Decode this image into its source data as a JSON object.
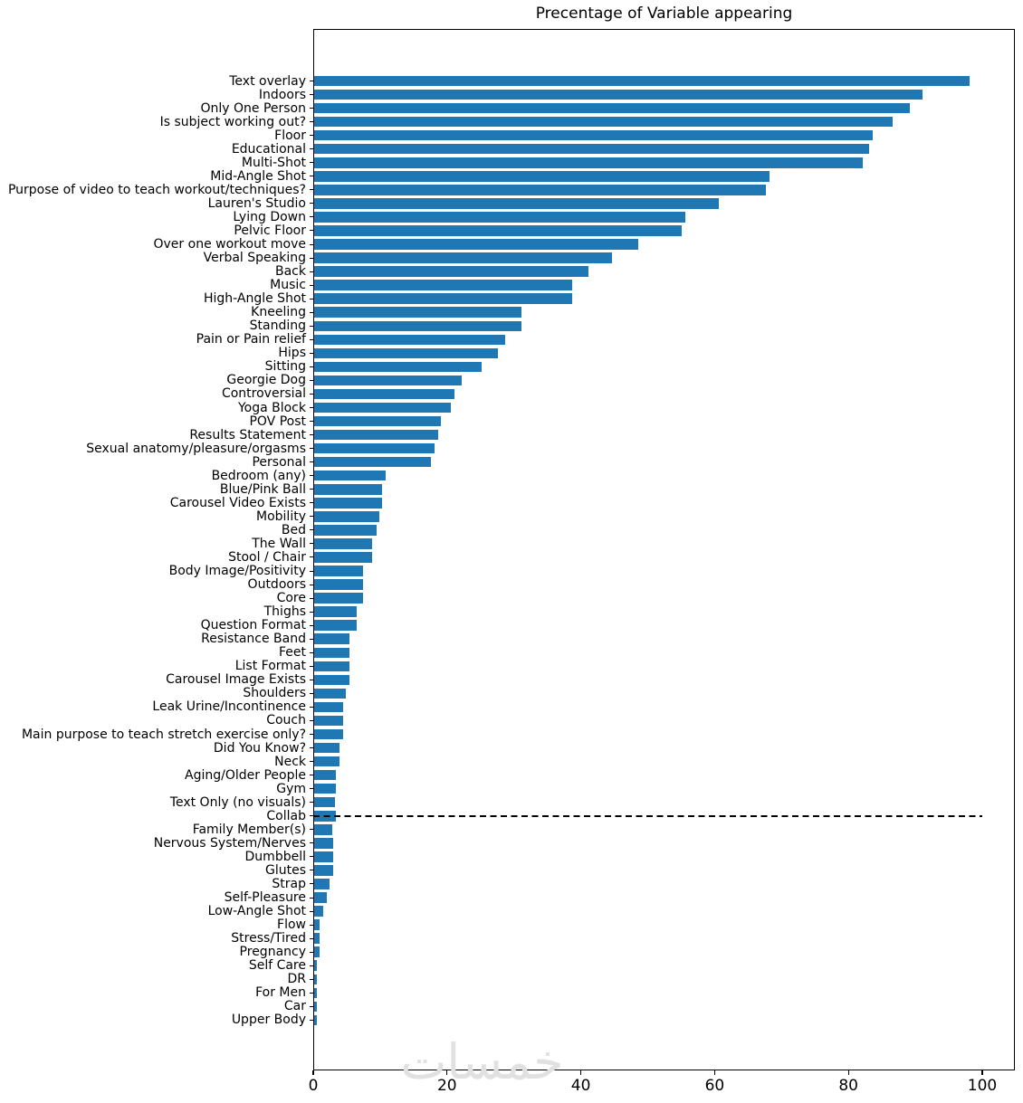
{
  "chart_data": {
    "type": "bar",
    "orientation": "horizontal",
    "title": "Precentage of Variable appearing",
    "xlabel": "",
    "ylabel": "",
    "xlim": [
      0,
      104.9
    ],
    "x_ticks": [
      0,
      20,
      40,
      60,
      80,
      100
    ],
    "grid": false,
    "bar_color": "#1f77b4",
    "categories": [
      "Text overlay",
      "Indoors",
      "Only One Person",
      "Is subject working out?",
      "Floor",
      "Educational",
      "Multi-Shot",
      "Mid-Angle Shot",
      "Purpose of video to teach workout/techniques?",
      "Lauren's Studio",
      "Lying Down",
      "Pelvic Floor",
      "Over one workout move",
      "Verbal Speaking",
      "Back",
      "Music",
      "High-Angle Shot",
      "Kneeling",
      "Standing",
      "Pain or Pain relief",
      "Hips",
      "Sitting",
      "Georgie Dog",
      "Controversial",
      "Yoga Block",
      "POV Post",
      "Results Statement",
      "Sexual anatomy/pleasure/orgasms",
      "Personal",
      "Bedroom (any)",
      "Blue/Pink Ball",
      "Carousel Video Exists",
      "Mobility",
      "Bed",
      "The Wall",
      "Stool / Chair",
      "Body Image/Positivity",
      "Outdoors",
      "Core",
      "Thighs",
      "Question Format",
      "Resistance Band",
      "Feet",
      "List Format",
      "Carousel Image Exists",
      "Shoulders",
      "Leak Urine/Incontinence",
      "Couch",
      "Main purpose to teach stretch exercise only?",
      "Did You Know?",
      "Neck",
      "Aging/Older People",
      "Gym",
      "Text Only (no visuals)",
      "Collab",
      "Family Member(s)",
      "Nervous System/Nerves",
      "Dumbbell",
      "Glutes",
      "Strap",
      "Self-Pleasure",
      "Low-Angle Shot",
      "Flow",
      "Stress/Tired",
      "Pregnancy",
      "Self Care",
      "DR",
      "For Men",
      "Car",
      "Upper Body"
    ],
    "values": [
      98,
      91,
      89,
      86.5,
      83.5,
      83,
      82,
      68,
      67.5,
      60.5,
      55.5,
      55,
      48.5,
      44.5,
      41,
      38.5,
      38.5,
      31,
      31,
      28.5,
      27.5,
      25,
      22,
      21,
      20.5,
      19,
      18.5,
      18,
      17.5,
      10.7,
      10.2,
      10.2,
      9.7,
      9.3,
      8.7,
      8.7,
      7.3,
      7.3,
      7.3,
      6.3,
      6.3,
      5.3,
      5.3,
      5.3,
      5.3,
      4.7,
      4.3,
      4.3,
      4.3,
      3.8,
      3.8,
      3.2,
      3.2,
      3.1,
      3.2,
      2.7,
      2.8,
      2.8,
      2.9,
      2.3,
      1.9,
      1.4,
      0.8,
      0.8,
      0.8,
      0.4,
      0.4,
      0.4,
      0.4,
      0.4
    ],
    "annotations": [
      {
        "type": "hline",
        "at_category": "Collab",
        "style": "dashed",
        "color": "#000000",
        "x_range": [
          0,
          100
        ]
      }
    ],
    "legend": null
  },
  "watermark": {
    "text": "خمسات"
  }
}
